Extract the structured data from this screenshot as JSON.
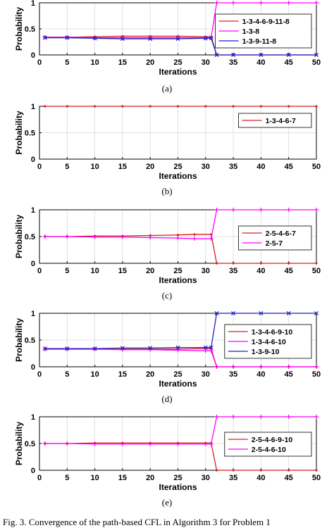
{
  "chart_data": [
    {
      "type": "line",
      "panel_label": "(a)",
      "xlabel": "Iterations",
      "ylabel": "Probability",
      "xlim": [
        0,
        50
      ],
      "ylim": [
        0,
        1
      ],
      "xticks": [
        0,
        5,
        10,
        15,
        20,
        25,
        30,
        35,
        40,
        45,
        50
      ],
      "yticks": [
        0,
        0.5,
        1
      ],
      "legend_position": "right",
      "grid": true,
      "series": [
        {
          "name": "1-3-4-6-9-11-8",
          "color": "#d62020",
          "marker": "dot",
          "x": [
            1,
            5,
            10,
            15,
            20,
            25,
            30,
            31,
            32,
            35,
            40,
            45,
            50
          ],
          "y": [
            0.34,
            0.34,
            0.35,
            0.36,
            0.36,
            0.36,
            0.35,
            0.35,
            0.0,
            0.0,
            0.0,
            0.0,
            0.0
          ]
        },
        {
          "name": "1-3-8",
          "color": "#ff00ff",
          "marker": "plus",
          "x": [
            1,
            5,
            10,
            15,
            20,
            25,
            30,
            31,
            32,
            35,
            40,
            45,
            50
          ],
          "y": [
            0.34,
            0.34,
            0.33,
            0.33,
            0.33,
            0.33,
            0.33,
            0.33,
            1.0,
            1.0,
            1.0,
            1.0,
            1.0
          ]
        },
        {
          "name": "1-3-9-11-8",
          "color": "#1f1fbf",
          "marker": "x",
          "x": [
            1,
            5,
            10,
            15,
            20,
            25,
            30,
            31,
            32,
            35,
            40,
            45,
            50
          ],
          "y": [
            0.33,
            0.33,
            0.32,
            0.31,
            0.31,
            0.31,
            0.32,
            0.32,
            0.0,
            0.0,
            0.0,
            0.0,
            0.0
          ]
        }
      ]
    },
    {
      "type": "line",
      "panel_label": "(b)",
      "xlabel": "Iterations",
      "ylabel": "Probability",
      "xlim": [
        0,
        50
      ],
      "ylim": [
        0,
        1
      ],
      "xticks": [
        0,
        5,
        10,
        15,
        20,
        25,
        30,
        35,
        40,
        45,
        50
      ],
      "yticks": [
        0,
        0.5,
        1
      ],
      "legend_position": "right",
      "grid": true,
      "series": [
        {
          "name": "1-3-4-6-7",
          "color": "#d62020",
          "marker": "dot",
          "x": [
            1,
            5,
            10,
            15,
            20,
            25,
            30,
            35,
            40,
            45,
            50
          ],
          "y": [
            1,
            1,
            1,
            1,
            1,
            1,
            1,
            1,
            1,
            1,
            1
          ]
        }
      ]
    },
    {
      "type": "line",
      "panel_label": "(c)",
      "xlabel": "Iterations",
      "ylabel": "Probability",
      "xlim": [
        0,
        50
      ],
      "ylim": [
        0,
        1
      ],
      "xticks": [
        0,
        5,
        10,
        15,
        20,
        25,
        30,
        35,
        40,
        45,
        50
      ],
      "yticks": [
        0,
        0.5,
        1
      ],
      "legend_position": "right",
      "grid": true,
      "series": [
        {
          "name": "2-5-4-6-7",
          "color": "#d62020",
          "marker": "dot",
          "x": [
            1,
            5,
            10,
            15,
            20,
            25,
            28,
            31,
            32,
            35,
            40,
            45,
            50
          ],
          "y": [
            0.5,
            0.5,
            0.51,
            0.51,
            0.52,
            0.53,
            0.54,
            0.54,
            0.0,
            0.0,
            0.0,
            0.0,
            0.0
          ]
        },
        {
          "name": "2-5-7",
          "color": "#ff00ff",
          "marker": "plus",
          "x": [
            1,
            5,
            10,
            15,
            20,
            25,
            28,
            31,
            32,
            35,
            40,
            45,
            50
          ],
          "y": [
            0.5,
            0.5,
            0.49,
            0.49,
            0.48,
            0.47,
            0.46,
            0.46,
            1.0,
            1.0,
            1.0,
            1.0,
            1.0
          ]
        }
      ]
    },
    {
      "type": "line",
      "panel_label": "(d)",
      "xlabel": "Iterations",
      "ylabel": "Probability",
      "xlim": [
        0,
        50
      ],
      "ylim": [
        0,
        1
      ],
      "xticks": [
        0,
        5,
        10,
        15,
        20,
        25,
        30,
        35,
        40,
        45,
        50
      ],
      "yticks": [
        0,
        0.5,
        1
      ],
      "legend_position": "right",
      "grid": true,
      "series": [
        {
          "name": "1-3-4-6-9-10",
          "color": "#d62020",
          "marker": "dot",
          "x": [
            1,
            5,
            10,
            15,
            20,
            25,
            30,
            31,
            32,
            35,
            40,
            45,
            50
          ],
          "y": [
            0.33,
            0.33,
            0.33,
            0.33,
            0.33,
            0.33,
            0.34,
            0.34,
            0.0,
            0.0,
            0.0,
            0.0,
            0.0
          ]
        },
        {
          "name": "1-3-4-6-10",
          "color": "#ff00ff",
          "marker": "plus",
          "x": [
            1,
            5,
            10,
            15,
            20,
            25,
            30,
            31,
            32,
            35,
            40,
            45,
            50
          ],
          "y": [
            0.33,
            0.33,
            0.33,
            0.32,
            0.32,
            0.31,
            0.3,
            0.3,
            0.0,
            0.0,
            0.0,
            0.0,
            0.0
          ]
        },
        {
          "name": "1-3-9-10",
          "color": "#1f1fbf",
          "marker": "x",
          "x": [
            1,
            5,
            10,
            15,
            20,
            25,
            30,
            31,
            32,
            35,
            40,
            45,
            50
          ],
          "y": [
            0.34,
            0.34,
            0.34,
            0.35,
            0.35,
            0.36,
            0.36,
            0.36,
            1.0,
            1.0,
            1.0,
            1.0,
            1.0
          ]
        }
      ]
    },
    {
      "type": "line",
      "panel_label": "(e)",
      "xlabel": "Iterations",
      "ylabel": "Probability",
      "xlim": [
        0,
        50
      ],
      "ylim": [
        0,
        1
      ],
      "xticks": [
        0,
        5,
        10,
        15,
        20,
        25,
        30,
        35,
        40,
        45,
        50
      ],
      "yticks": [
        0,
        0.5,
        1
      ],
      "legend_position": "right",
      "grid": true,
      "series": [
        {
          "name": "2-5-4-6-9-10",
          "color": "#d62020",
          "marker": "dot",
          "x": [
            1,
            5,
            10,
            15,
            20,
            25,
            30,
            31,
            32,
            35,
            40,
            45,
            50
          ],
          "y": [
            0.5,
            0.5,
            0.51,
            0.51,
            0.51,
            0.51,
            0.51,
            0.51,
            0.0,
            0.0,
            0.0,
            0.0,
            0.0
          ]
        },
        {
          "name": "2-5-4-6-10",
          "color": "#ff00ff",
          "marker": "plus",
          "x": [
            1,
            5,
            10,
            15,
            20,
            25,
            30,
            31,
            32,
            35,
            40,
            45,
            50
          ],
          "y": [
            0.5,
            0.5,
            0.49,
            0.49,
            0.49,
            0.49,
            0.49,
            0.49,
            1.0,
            1.0,
            1.0,
            1.0,
            1.0
          ]
        }
      ]
    }
  ],
  "figure_caption": "Fig. 3.   Convergence of the path-based CFL in Algorithm 3 for Problem 1"
}
